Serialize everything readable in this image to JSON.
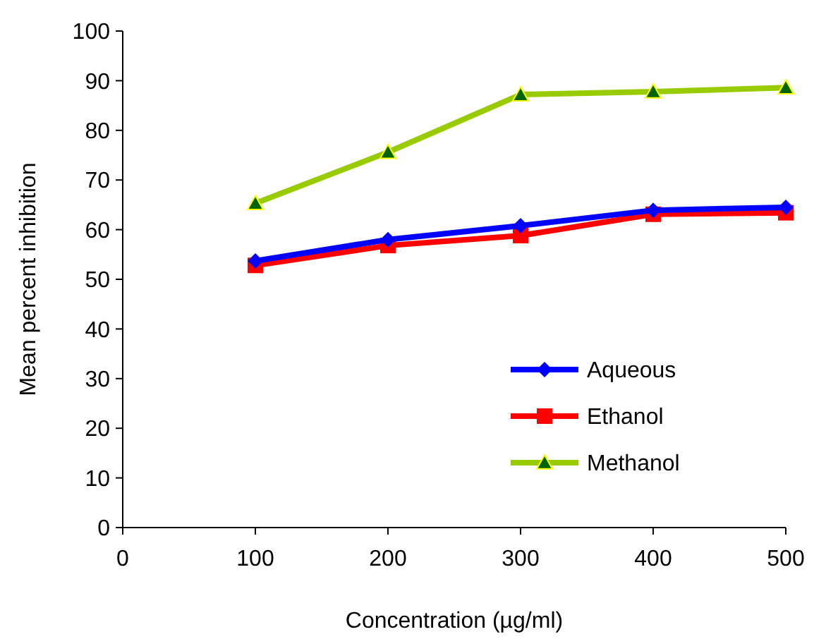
{
  "chart_data": {
    "type": "line",
    "xlabel": "Concentration (µg/ml)",
    "ylabel": "Mean percent inhibition",
    "x": [
      100,
      200,
      300,
      400,
      500
    ],
    "series": [
      {
        "name": "Aqueous",
        "color": "#0000ff",
        "marker": "diamond",
        "values": [
          53.7,
          58,
          60.8,
          63.9,
          64.5
        ]
      },
      {
        "name": "Ethanol",
        "color": "#ff0000",
        "marker": "square",
        "values": [
          52.8,
          56.8,
          58.8,
          63.1,
          63.4
        ]
      },
      {
        "name": "Methanol",
        "color": "#99cc00",
        "marker": "triangle",
        "values": [
          65.3,
          75.6,
          87.2,
          87.8,
          88.6
        ]
      }
    ],
    "xlim": [
      0,
      500
    ],
    "xticks": [
      0,
      100,
      200,
      300,
      400,
      500
    ],
    "ylim": [
      0,
      100
    ],
    "yticks": [
      0,
      10,
      20,
      30,
      40,
      50,
      60,
      70,
      80,
      90,
      100
    ],
    "grid": false,
    "legend": "bottom right"
  }
}
